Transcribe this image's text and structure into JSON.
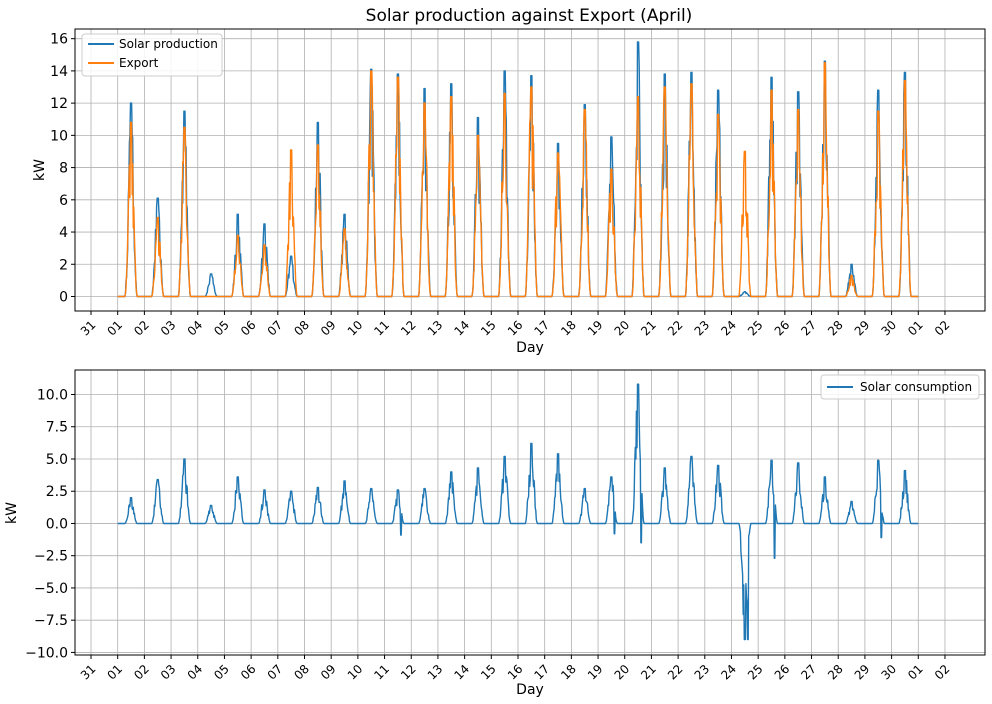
{
  "chart_data": [
    {
      "type": "line",
      "title": "Solar production against Export (April)",
      "xlabel": "Day",
      "ylabel": "kW",
      "x_tick_labels": [
        "31",
        "01",
        "02",
        "03",
        "04",
        "05",
        "06",
        "07",
        "08",
        "09",
        "10",
        "11",
        "12",
        "13",
        "14",
        "15",
        "16",
        "17",
        "18",
        "19",
        "20",
        "21",
        "22",
        "23",
        "24",
        "25",
        "26",
        "27",
        "28",
        "29",
        "30",
        "01",
        "02"
      ],
      "y_ticks": [
        "0",
        "2",
        "4",
        "6",
        "8",
        "10",
        "12",
        "14",
        "16"
      ],
      "ylim": [
        -0.9,
        16.6
      ],
      "xlim_days": [
        -1.6,
        32.5
      ],
      "grid": true,
      "legend_position": "top-left",
      "series": [
        {
          "name": "Solar production",
          "color": "#1f77b4",
          "daily_peaks": [
            12.0,
            6.1,
            11.5,
            1.4,
            5.1,
            4.5,
            2.5,
            10.8,
            5.1,
            14.1,
            13.8,
            12.9,
            13.2,
            11.1,
            14.0,
            13.7,
            9.5,
            11.9,
            9.9,
            15.8,
            13.8,
            13.9,
            12.8,
            0.3,
            13.6,
            12.7,
            14.6,
            2.0,
            12.8,
            13.9
          ]
        },
        {
          "name": "Export",
          "color": "#ff7f0e",
          "daily_peaks": [
            10.8,
            4.9,
            10.5,
            0.0,
            3.8,
            3.2,
            9.1,
            9.4,
            4.2,
            14.0,
            13.6,
            12.0,
            12.4,
            10.0,
            12.6,
            13.0,
            8.9,
            11.6,
            7.9,
            12.4,
            13.0,
            13.2,
            11.3,
            9.0,
            12.8,
            11.6,
            14.5,
            1.3,
            11.5,
            13.4
          ]
        }
      ]
    },
    {
      "type": "line",
      "title": "",
      "xlabel": "Day",
      "ylabel": "kW",
      "x_tick_labels": [
        "31",
        "01",
        "02",
        "03",
        "04",
        "05",
        "06",
        "07",
        "08",
        "09",
        "10",
        "11",
        "12",
        "13",
        "14",
        "15",
        "16",
        "17",
        "18",
        "19",
        "20",
        "21",
        "22",
        "23",
        "24",
        "25",
        "26",
        "27",
        "28",
        "29",
        "30",
        "01",
        "02"
      ],
      "y_ticks": [
        "−10.0",
        "−7.5",
        "−5.0",
        "−2.5",
        "0.0",
        "2.5",
        "5.0",
        "7.5",
        "10.0"
      ],
      "ylim": [
        -10.2,
        11.9
      ],
      "xlim_days": [
        -1.6,
        32.5
      ],
      "grid": true,
      "legend_position": "top-right",
      "series": [
        {
          "name": "Solar consumption",
          "color": "#1f77b4",
          "daily_peaks": [
            2.0,
            3.4,
            5.0,
            1.4,
            3.6,
            2.6,
            2.5,
            2.8,
            3.3,
            2.7,
            2.6,
            2.7,
            4.0,
            4.3,
            5.2,
            6.2,
            5.4,
            2.7,
            3.6,
            10.8,
            4.3,
            5.2,
            4.5,
            -9.0,
            4.9,
            4.7,
            3.6,
            1.7,
            4.9,
            4.1
          ],
          "daily_dips": [
            0,
            0,
            0,
            0,
            0,
            0,
            0,
            0,
            0,
            0,
            -0.9,
            0,
            0,
            0,
            0,
            0,
            0,
            0,
            -0.8,
            -1.5,
            0,
            0,
            0,
            -9.0,
            -2.7,
            0,
            0,
            0,
            -1.1,
            0
          ]
        }
      ]
    }
  ]
}
